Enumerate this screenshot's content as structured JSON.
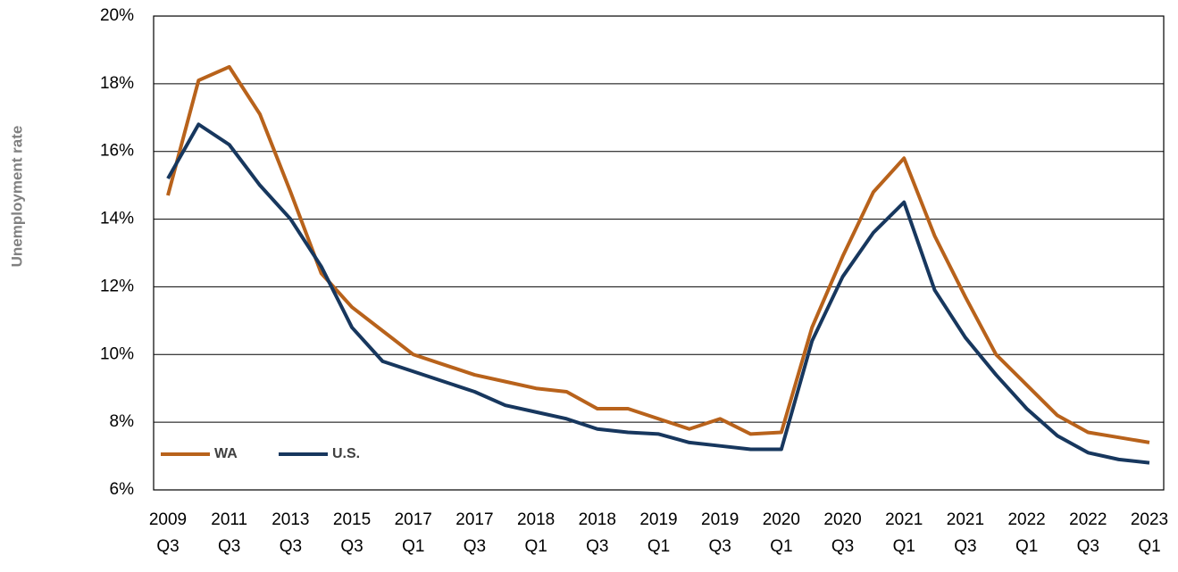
{
  "chart_data": {
    "type": "line",
    "y_label": "Unemployment rate",
    "categories": [
      [
        "2009",
        "Q3"
      ],
      null,
      [
        "2011",
        "Q3"
      ],
      null,
      [
        "2013",
        "Q3"
      ],
      null,
      [
        "2015",
        "Q3"
      ],
      null,
      [
        "2017",
        "Q1"
      ],
      null,
      [
        "2017",
        "Q3"
      ],
      null,
      [
        "2018",
        "Q1"
      ],
      null,
      [
        "2018",
        "Q3"
      ],
      null,
      [
        "2019",
        "Q1"
      ],
      null,
      [
        "2019",
        "Q3"
      ],
      null,
      [
        "2020",
        "Q1"
      ],
      null,
      [
        "2020",
        "Q3"
      ],
      null,
      [
        "2021",
        "Q1"
      ],
      null,
      [
        "2021",
        "Q3"
      ],
      null,
      [
        "2022",
        "Q1"
      ],
      null,
      [
        "2022",
        "Q3"
      ],
      null,
      [
        "2023",
        "Q1"
      ]
    ],
    "series": [
      {
        "name": "WA",
        "color": "#b8621b",
        "values": [
          14.7,
          18.1,
          18.5,
          17.1,
          14.8,
          12.4,
          11.4,
          10.7,
          10.0,
          9.7,
          9.4,
          9.2,
          9.0,
          8.9,
          8.4,
          8.4,
          8.1,
          7.8,
          8.1,
          7.65,
          7.7,
          10.8,
          12.9,
          14.8,
          15.8,
          13.5,
          11.7,
          10.0,
          9.1,
          8.2,
          7.7,
          7.55,
          7.4
        ]
      },
      {
        "name": "U.S.",
        "color": "#17375e",
        "values": [
          15.2,
          16.8,
          16.2,
          15.0,
          14.0,
          12.6,
          10.8,
          9.8,
          9.5,
          9.2,
          8.9,
          8.5,
          8.3,
          8.1,
          7.8,
          7.7,
          7.65,
          7.4,
          7.3,
          7.2,
          7.2,
          10.4,
          12.3,
          13.6,
          14.5,
          11.9,
          10.5,
          9.4,
          8.4,
          7.6,
          7.1,
          6.9,
          6.8
        ]
      }
    ],
    "ylim": [
      6,
      20
    ],
    "yticks": [
      {
        "value": 6,
        "label": "6%"
      },
      {
        "value": 8,
        "label": "8%"
      },
      {
        "value": 10,
        "label": "10%"
      },
      {
        "value": 12,
        "label": "12%"
      },
      {
        "value": 14,
        "label": "14%"
      },
      {
        "value": 16,
        "label": "16%"
      },
      {
        "value": 18,
        "label": "18%"
      },
      {
        "value": 20,
        "label": "20%"
      }
    ],
    "grid": true,
    "legend": "lower left"
  }
}
